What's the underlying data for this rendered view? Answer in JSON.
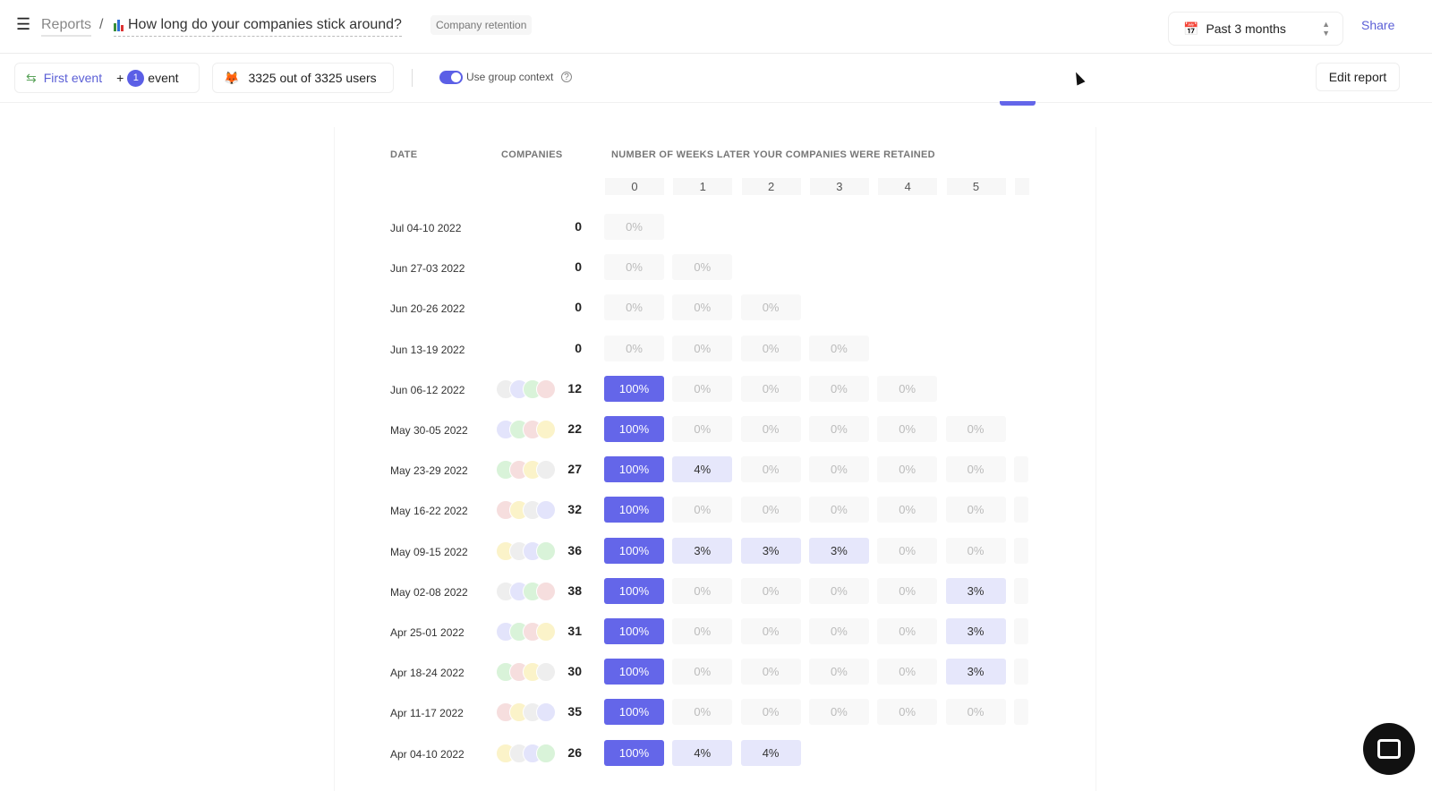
{
  "header": {
    "breadcrumb": "Reports",
    "separator": "/",
    "title": "How long do your companies stick around?",
    "tag": "Company retention",
    "date_range": "Past 3 months",
    "share": "Share"
  },
  "toolbar": {
    "first_event": "First event",
    "plus": "+",
    "event_count": "1",
    "event_label": "event",
    "users": "3325 out of 3325 users",
    "group_context": "Use group context",
    "group_context_on": true,
    "edit_report": "Edit report"
  },
  "table": {
    "date_header": "DATE",
    "companies_header": "COMPANIES",
    "weeks_header": "NUMBER OF WEEKS LATER YOUR COMPANIES WERE RETAINED",
    "weeks": [
      "0",
      "1",
      "2",
      "3",
      "4",
      "5"
    ],
    "rows": [
      {
        "date": "Jul 04-10 2022",
        "count": "0",
        "cells": [
          "0%"
        ]
      },
      {
        "date": "Jun 27-03 2022",
        "count": "0",
        "cells": [
          "0%",
          "0%"
        ]
      },
      {
        "date": "Jun 20-26 2022",
        "count": "0",
        "cells": [
          "0%",
          "0%",
          "0%"
        ]
      },
      {
        "date": "Jun 13-19 2022",
        "count": "0",
        "cells": [
          "0%",
          "0%",
          "0%",
          "0%"
        ]
      },
      {
        "date": "Jun 06-12 2022",
        "count": "12",
        "cells": [
          "100%",
          "0%",
          "0%",
          "0%",
          "0%"
        ]
      },
      {
        "date": "May 30-05 2022",
        "count": "22",
        "cells": [
          "100%",
          "0%",
          "0%",
          "0%",
          "0%",
          "0%"
        ]
      },
      {
        "date": "May 23-29 2022",
        "count": "27",
        "cells": [
          "100%",
          "4%",
          "0%",
          "0%",
          "0%",
          "0%"
        ]
      },
      {
        "date": "May 16-22 2022",
        "count": "32",
        "cells": [
          "100%",
          "0%",
          "0%",
          "0%",
          "0%",
          "0%"
        ]
      },
      {
        "date": "May 09-15 2022",
        "count": "36",
        "cells": [
          "100%",
          "3%",
          "3%",
          "3%",
          "0%",
          "0%"
        ]
      },
      {
        "date": "May 02-08 2022",
        "count": "38",
        "cells": [
          "100%",
          "0%",
          "0%",
          "0%",
          "0%",
          "3%"
        ]
      },
      {
        "date": "Apr 25-01 2022",
        "count": "31",
        "cells": [
          "100%",
          "0%",
          "0%",
          "0%",
          "0%",
          "3%"
        ]
      },
      {
        "date": "Apr 18-24 2022",
        "count": "30",
        "cells": [
          "100%",
          "0%",
          "0%",
          "0%",
          "0%",
          "3%"
        ]
      },
      {
        "date": "Apr 11-17 2022",
        "count": "35",
        "cells": [
          "100%",
          "0%",
          "0%",
          "0%",
          "0%",
          "0%"
        ]
      },
      {
        "date": "Apr 04-10 2022",
        "count": "26",
        "cells": [
          "100%",
          "4%",
          "4%"
        ]
      }
    ]
  },
  "colors": {
    "accent": "#6466e9",
    "light": "#e6e7fb",
    "avatars": [
      "#e3e4fb",
      "#d9f3d9",
      "#f6dede",
      "#fbf3c9",
      "#eeeeee"
    ]
  }
}
